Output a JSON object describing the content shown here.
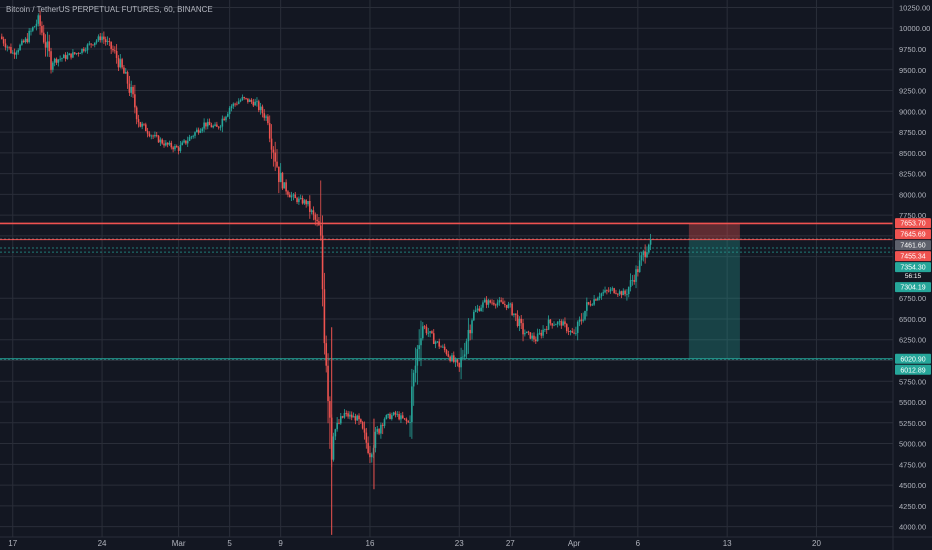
{
  "header": {
    "title": "Bitcoin / TetherUS PERPETUAL FUTURES, 60, BINANCE"
  },
  "colors": {
    "background": "#131722",
    "grid": "#2a2e39",
    "axis_text": "#b2b5be",
    "candle_up": "#26a69a",
    "candle_down": "#ef5350",
    "stop_zone": "rgba(239,83,80,0.35)",
    "target_zone": "rgba(38,166,154,0.30)",
    "red_line": "#ef5350",
    "green_line": "#26a69a",
    "entry_line": "#9598a1"
  },
  "chart_data": {
    "type": "candlestick",
    "title": "Bitcoin / TetherUS PERPETUAL FUTURES, 60, BINANCE",
    "symbol": "BTCUSDT PERP",
    "interval": "60",
    "exchange": "BINANCE",
    "x_tick_labels": [
      "17",
      "24",
      "Mar",
      "5",
      "9",
      "16",
      "23",
      "27",
      "Apr",
      "6",
      "13",
      "20"
    ],
    "x_tick_dates": [
      "2020-02-17",
      "2020-02-24",
      "2020-03-01",
      "2020-03-05",
      "2020-03-09",
      "2020-03-16",
      "2020-03-23",
      "2020-03-27",
      "2020-04-01",
      "2020-04-06",
      "2020-04-13",
      "2020-04-20"
    ],
    "y_tick_labels": [
      "10250.00",
      "10000.00",
      "9750.00",
      "9500.00",
      "9250.00",
      "9000.00",
      "8750.00",
      "8500.00",
      "8250.00",
      "8000.00",
      "7750.00",
      "7500.00",
      "7250.00",
      "6750.00",
      "6500.00",
      "6250.00",
      "6000.00",
      "5750.00",
      "5500.00",
      "5250.00",
      "5000.00",
      "4750.00",
      "4500.00",
      "4250.00",
      "4000.00"
    ],
    "y_range": [
      3875,
      10340
    ],
    "x_range": [
      "2020-02-16",
      "2020-04-26"
    ],
    "grid": true,
    "price_path": [
      [
        "2020-02-16",
        9900
      ],
      [
        "2020-02-17",
        9700
      ],
      [
        "2020-02-18",
        9850
      ],
      [
        "2020-02-19",
        10100
      ],
      [
        "2020-02-20",
        9600
      ],
      [
        "2020-02-21",
        9650
      ],
      [
        "2020-02-22",
        9700
      ],
      [
        "2020-02-23",
        9800
      ],
      [
        "2020-02-24",
        9900
      ],
      [
        "2020-02-25",
        9700
      ],
      [
        "2020-02-26",
        9350
      ],
      [
        "2020-02-27",
        8850
      ],
      [
        "2020-02-28",
        8700
      ],
      [
        "2020-02-29",
        8600
      ],
      [
        "2020-03-01",
        8550
      ],
      [
        "2020-03-02",
        8700
      ],
      [
        "2020-03-03",
        8850
      ],
      [
        "2020-03-04",
        8800
      ],
      [
        "2020-03-05",
        9050
      ],
      [
        "2020-03-06",
        9150
      ],
      [
        "2020-03-07",
        9100
      ],
      [
        "2020-03-08",
        8900
      ],
      [
        "2020-03-09",
        8150
      ],
      [
        "2020-03-10",
        7950
      ],
      [
        "2020-03-11",
        7900
      ],
      [
        "2020-03-12",
        7600
      ],
      [
        "2020-03-13",
        5100
      ],
      [
        "2020-03-14",
        5350
      ],
      [
        "2020-03-15",
        5300
      ],
      [
        "2020-03-16",
        4900
      ],
      [
        "2020-03-17",
        5300
      ],
      [
        "2020-03-18",
        5350
      ],
      [
        "2020-03-19",
        5250
      ],
      [
        "2020-03-20",
        6450
      ],
      [
        "2020-03-21",
        6250
      ],
      [
        "2020-03-22",
        6100
      ],
      [
        "2020-03-23",
        5900
      ],
      [
        "2020-03-24",
        6550
      ],
      [
        "2020-03-25",
        6700
      ],
      [
        "2020-03-26",
        6700
      ],
      [
        "2020-03-27",
        6650
      ],
      [
        "2020-03-28",
        6350
      ],
      [
        "2020-03-29",
        6250
      ],
      [
        "2020-03-30",
        6450
      ],
      [
        "2020-03-31",
        6450
      ],
      [
        "2020-04-01",
        6300
      ],
      [
        "2020-04-02",
        6650
      ],
      [
        "2020-04-03",
        6800
      ],
      [
        "2020-04-04",
        6850
      ],
      [
        "2020-04-05",
        6800
      ],
      [
        "2020-04-06",
        7100
      ],
      [
        "2020-04-07",
        7500
      ]
    ],
    "horizontal_lines": [
      {
        "price": 7653.7,
        "label": "7653.70",
        "color": "#ef5350"
      },
      {
        "price": 7645.69,
        "label": "7645.69",
        "color": "#ef5350"
      },
      {
        "price": 7461.6,
        "label": "7461.60",
        "color": "#9598a1"
      },
      {
        "price": 7455.34,
        "label": "7455.34",
        "color": "#ef5350"
      },
      {
        "price": 7354.3,
        "label": "7354.30",
        "color": "#26a69a"
      },
      {
        "price": 7304.19,
        "label": "7304.19",
        "color": "#26a69a"
      },
      {
        "price": 6020.9,
        "label": "6020.90",
        "color": "#26a69a"
      },
      {
        "price": 6012.89,
        "label": "6012.89",
        "color": "#26a69a"
      }
    ],
    "position": {
      "side": "short",
      "entry": 7455.34,
      "stop": 7653.7,
      "target": 6020.9,
      "start": "2020-04-10",
      "end": "2020-04-14"
    },
    "countdown": "56:15"
  }
}
